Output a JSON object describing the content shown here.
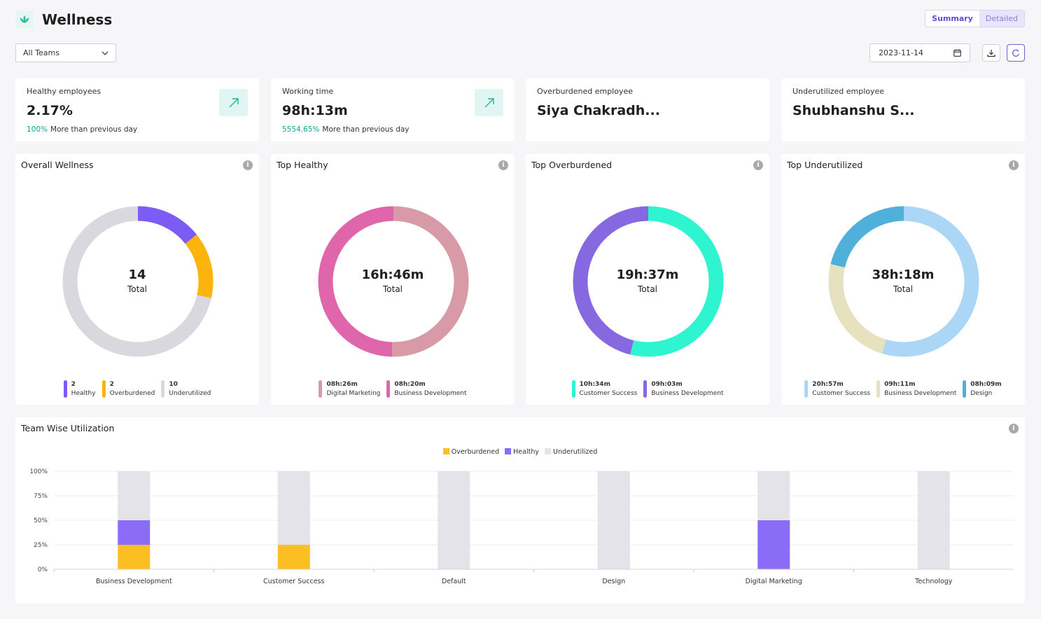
{
  "app": {
    "title": "Wellness",
    "logo_icon": "lotus-icon",
    "view_toggle": {
      "summary": "Summary",
      "detailed": "Detailed",
      "selected": "Summary"
    },
    "team_filter": {
      "selected": "All Teams"
    },
    "date": "2023-11-14"
  },
  "stats": [
    {
      "label": "Healthy employees",
      "value": "2.17%",
      "change_pct": "100%",
      "change_text": "More than previous day",
      "trend": "up"
    },
    {
      "label": "Working time",
      "value": "98h:13m",
      "change_pct": "5554.65%",
      "change_text": "More than previous day",
      "trend": "up"
    },
    {
      "label": "Overburdened employee",
      "value": "Siya Chakradh..."
    },
    {
      "label": "Underutilized employee",
      "value": "Shubhanshu S..."
    }
  ],
  "charts": [
    {
      "title": "Overall Wellness",
      "center_value": "14",
      "center_label": "Total",
      "segments": [
        {
          "label": "Healthy",
          "display": "2",
          "value": 2,
          "color": "#7c5cf5"
        },
        {
          "label": "Overburdened",
          "display": "2",
          "value": 2,
          "color": "#fbb40c"
        },
        {
          "label": "Underutilized",
          "display": "10",
          "value": 10,
          "color": "#d8d8de"
        }
      ]
    },
    {
      "title": "Top Healthy",
      "center_value": "16h:46m",
      "center_label": "Total",
      "segments": [
        {
          "label": "Digital Marketing",
          "display": "08h:26m",
          "value": 506,
          "color": "#d89aa6"
        },
        {
          "label": "Business Development",
          "display": "08h:20m",
          "value": 500,
          "color": "#e066ac"
        }
      ]
    },
    {
      "title": "Top Overburdened",
      "center_value": "19h:37m",
      "center_label": "Total",
      "segments": [
        {
          "label": "Customer Success",
          "display": "10h:34m",
          "value": 634,
          "color": "#2ef5d0"
        },
        {
          "label": "Business Development",
          "display": "09h:03m",
          "value": 543,
          "color": "#8669e0"
        }
      ]
    },
    {
      "title": "Top Underutilized",
      "center_value": "38h:18m",
      "center_label": "Total",
      "segments": [
        {
          "label": "Customer Success",
          "display": "20h:57m",
          "value": 1257,
          "color": "#acd6f5"
        },
        {
          "label": "Business Development",
          "display": "09h:11m",
          "value": 551,
          "color": "#e6e2c0"
        },
        {
          "label": "Design",
          "display": "08h:09m",
          "value": 489,
          "color": "#4fb1da"
        }
      ]
    }
  ],
  "chart_data": {
    "type": "bar",
    "title": "Team Wise Utilization",
    "stacked": true,
    "categories": [
      "Business Development",
      "Customer Success",
      "Default",
      "Design",
      "Digital Marketing",
      "Technology"
    ],
    "series": [
      {
        "name": "Overburdened",
        "color": "#fbbf24",
        "values": [
          25,
          25,
          0,
          0,
          0,
          0
        ]
      },
      {
        "name": "Healthy",
        "color": "#8b6cf6",
        "values": [
          25,
          0,
          0,
          0,
          50,
          0
        ]
      },
      {
        "name": "Underutilized",
        "color": "#e4e3e9",
        "values": [
          50,
          75,
          100,
          100,
          50,
          100
        ]
      }
    ],
    "yticks": [
      "100%",
      "75%",
      "50%",
      "25%",
      "0%"
    ],
    "ylim": [
      0,
      100
    ],
    "legend": "top-center",
    "grid": true
  }
}
